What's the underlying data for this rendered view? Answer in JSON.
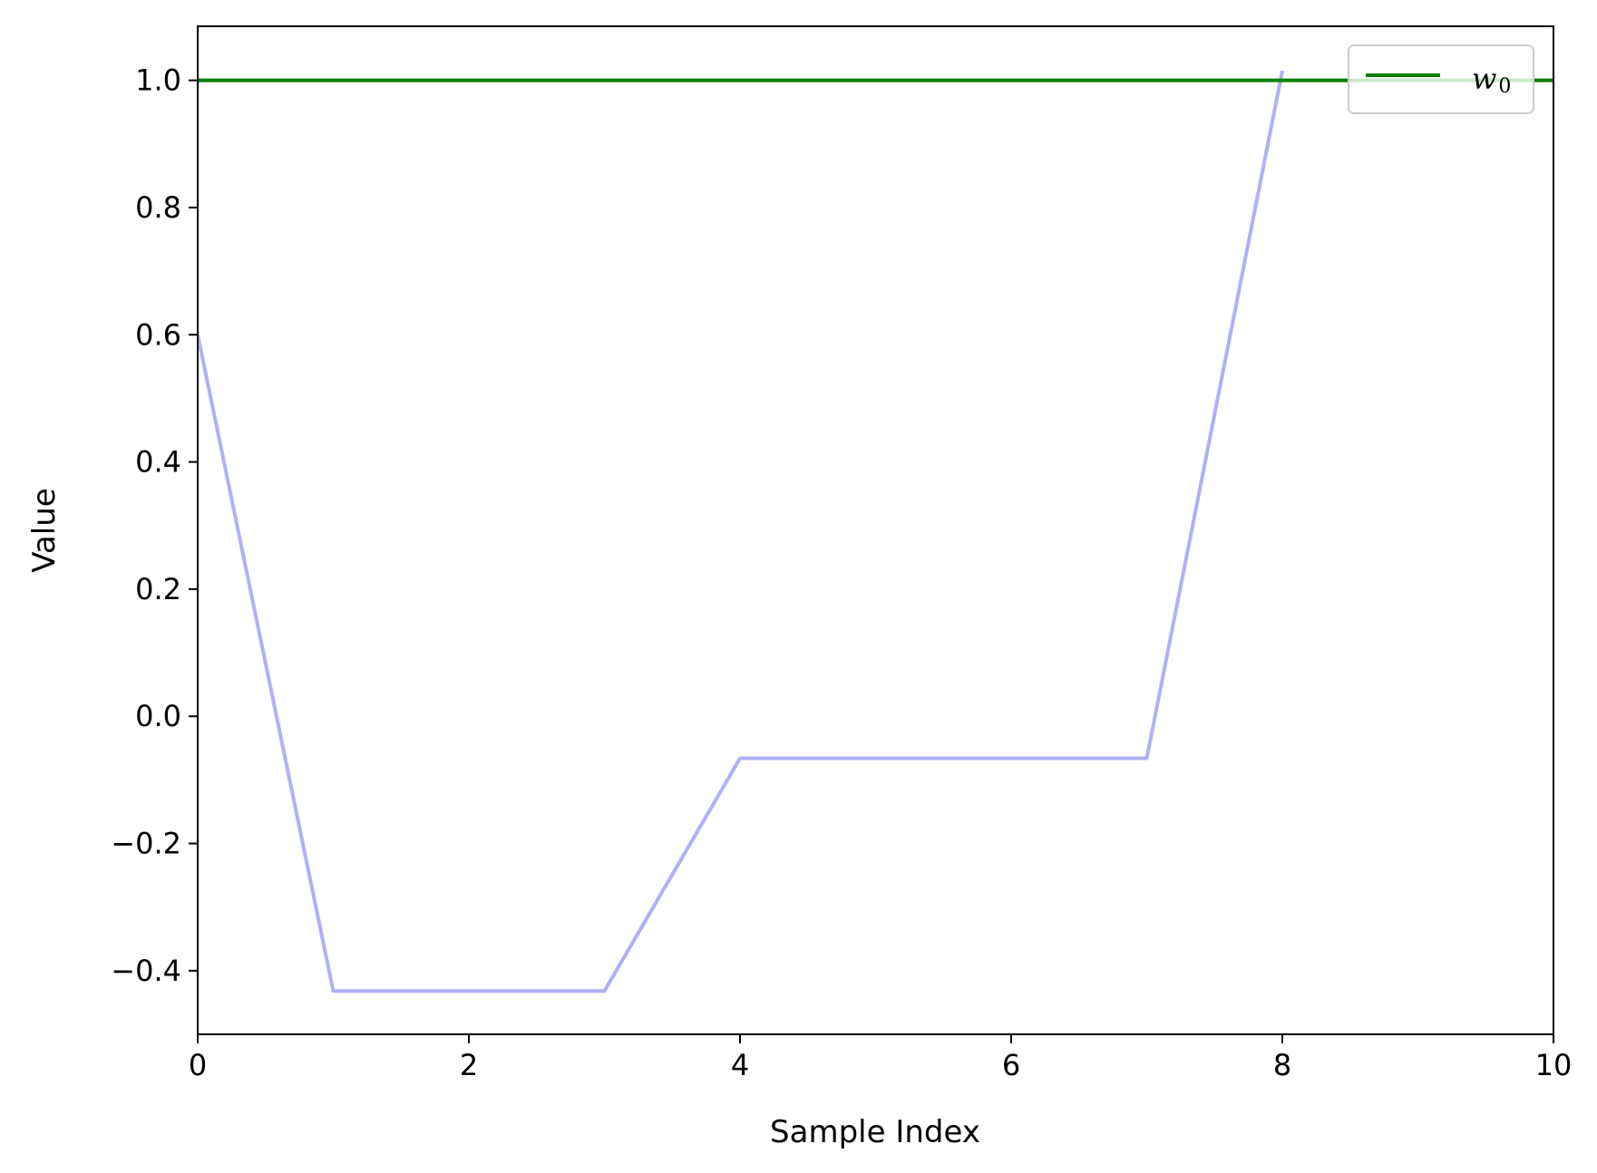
{
  "chart_data": {
    "type": "line",
    "title": "",
    "xlabel": "Sample Index",
    "ylabel": "Value",
    "xlim": [
      0,
      10
    ],
    "ylim": [
      -0.5,
      1.085
    ],
    "xticks": [
      0,
      2,
      4,
      6,
      8,
      10
    ],
    "xtick_labels": [
      "0",
      "2",
      "4",
      "6",
      "8",
      "10"
    ],
    "yticks": [
      -0.4,
      -0.2,
      0.0,
      0.2,
      0.4,
      0.6,
      0.8,
      1.0
    ],
    "ytick_labels": [
      "−0.4",
      "−0.2",
      "0.0",
      "0.2",
      "0.4",
      "0.6",
      "0.8",
      "1.0"
    ],
    "grid": false,
    "legend": {
      "position": "upper right",
      "entries": [
        {
          "label_main": "w",
          "label_sub": "0",
          "color": "#008000"
        }
      ]
    },
    "series": [
      {
        "name": "w0",
        "color": "#008000",
        "style": "horizontal-line",
        "y": 1.0
      },
      {
        "color": "#b0b0f8",
        "x": [
          0,
          1,
          2,
          3,
          4,
          5,
          6,
          7,
          8
        ],
        "values": [
          0.6,
          -0.432,
          -0.432,
          -0.432,
          -0.066,
          -0.066,
          -0.066,
          -0.066,
          1.015
        ]
      }
    ]
  }
}
